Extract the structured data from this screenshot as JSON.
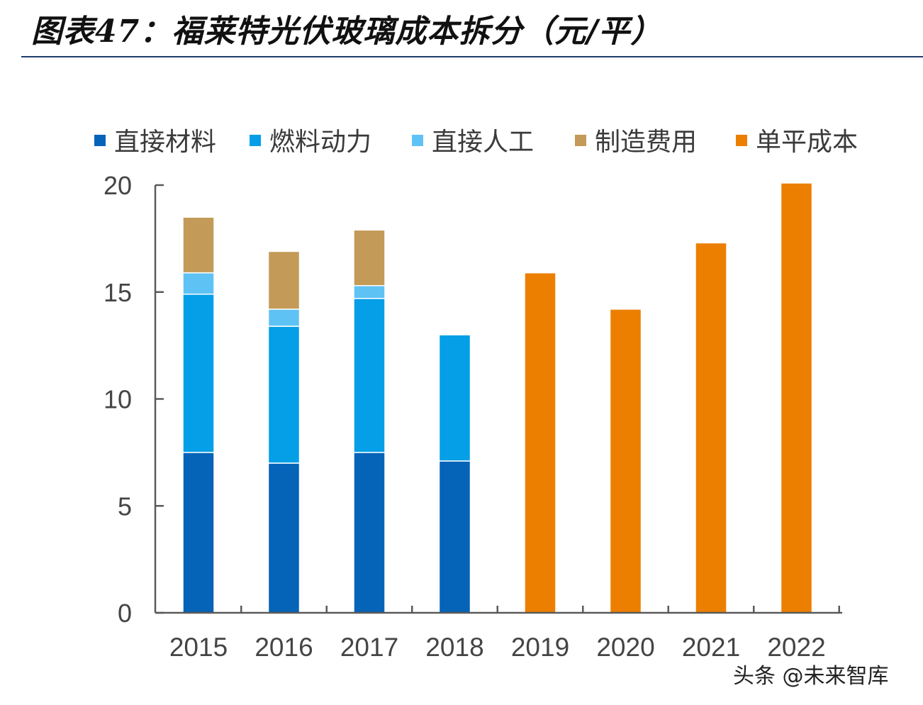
{
  "title": "图表47：福莱特光伏玻璃成本拆分（元/平）",
  "watermark": "头条 @未来智库",
  "chart_data": {
    "type": "bar",
    "stacked": true,
    "categories": [
      "2015",
      "2016",
      "2017",
      "2018",
      "2019",
      "2020",
      "2021",
      "2022"
    ],
    "series": [
      {
        "name": "直接材料",
        "color": "#0563b8",
        "values": [
          7.5,
          7.0,
          7.5,
          7.1,
          null,
          null,
          null,
          null
        ]
      },
      {
        "name": "燃料动力",
        "color": "#049fe6",
        "values": [
          7.4,
          6.4,
          7.2,
          5.9,
          null,
          null,
          null,
          null
        ]
      },
      {
        "name": "直接人工",
        "color": "#5fc2f5",
        "values": [
          1.0,
          0.8,
          0.6,
          null,
          null,
          null,
          null,
          null
        ]
      },
      {
        "name": "制造费用",
        "color": "#c39a57",
        "values": [
          2.6,
          2.7,
          2.6,
          null,
          null,
          null,
          null,
          null
        ]
      },
      {
        "name": "单平成本",
        "color": "#ec7f00",
        "values": [
          null,
          null,
          null,
          null,
          15.9,
          14.2,
          17.3,
          20.1
        ]
      }
    ],
    "ylim": [
      0,
      20
    ],
    "yticks": [
      "0",
      "5",
      "10",
      "15",
      "20"
    ],
    "legend_position": "top",
    "grid": false
  }
}
